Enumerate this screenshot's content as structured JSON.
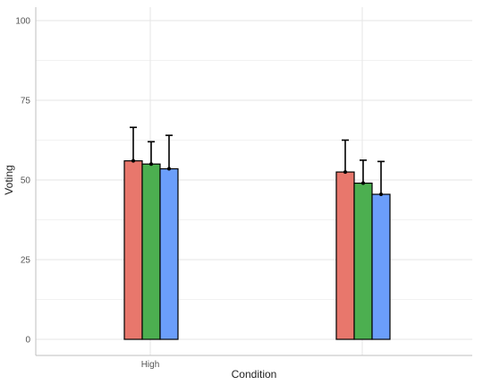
{
  "chart_data": {
    "type": "bar",
    "title": "",
    "xlabel": "Condition",
    "ylabel": "Voting",
    "ylim": [
      0,
      100
    ],
    "yticks": [
      0,
      25,
      50,
      75,
      100
    ],
    "categories": [
      "High",
      ""
    ],
    "grid": true,
    "legend": "none",
    "series": [
      {
        "color": "#E8776C",
        "values": [
          56,
          52.5
        ],
        "errors": [
          10.5,
          10
        ]
      },
      {
        "color": "#4CAF50",
        "values": [
          55,
          49
        ],
        "errors": [
          7,
          7.2
        ]
      },
      {
        "color": "#6B9EFA",
        "values": [
          53.5,
          45.5
        ],
        "errors": [
          10.5,
          10.3
        ]
      }
    ]
  }
}
